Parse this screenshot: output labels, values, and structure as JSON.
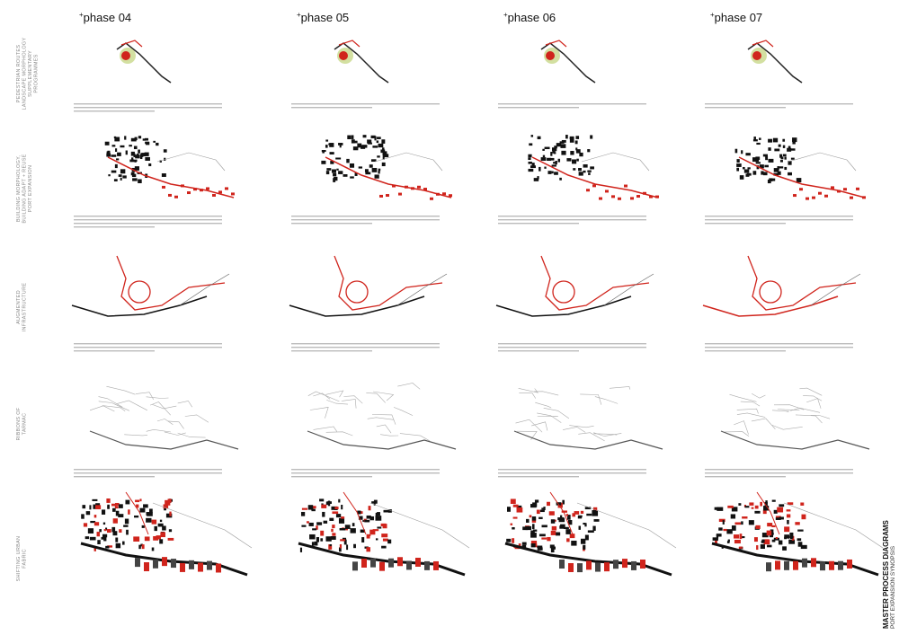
{
  "header": {
    "phases": [
      {
        "mark": "+",
        "label": "phase 04"
      },
      {
        "mark": "+",
        "label": "phase 05"
      },
      {
        "mark": "+",
        "label": "phase 06"
      },
      {
        "mark": "+",
        "label": "phase 07"
      }
    ]
  },
  "rows": [
    {
      "lines": [
        "PEDESTRIAN ROUTES",
        "LANDSCAPE MORPHOLOGY",
        "SUPPLEMENTARY",
        "PROGRAMMES"
      ]
    },
    {
      "lines": [
        "BUILDING MORPHOLOGY,",
        "BUILDING ADAPT + REUSE",
        "PORT EXPANSION"
      ]
    },
    {
      "lines": [
        "AUGMENTED",
        "INFRASTRUCTURE"
      ]
    },
    {
      "lines": [
        "RIBBONS OF",
        "TARMAC"
      ]
    },
    {
      "lines": [
        "SHIFTING URBAN",
        "FABRIC"
      ]
    }
  ],
  "footer": {
    "title": "MASTER PROCESS DIAGRAMS",
    "subtitle": "PORT EXPANSION SYNOPSIS"
  }
}
